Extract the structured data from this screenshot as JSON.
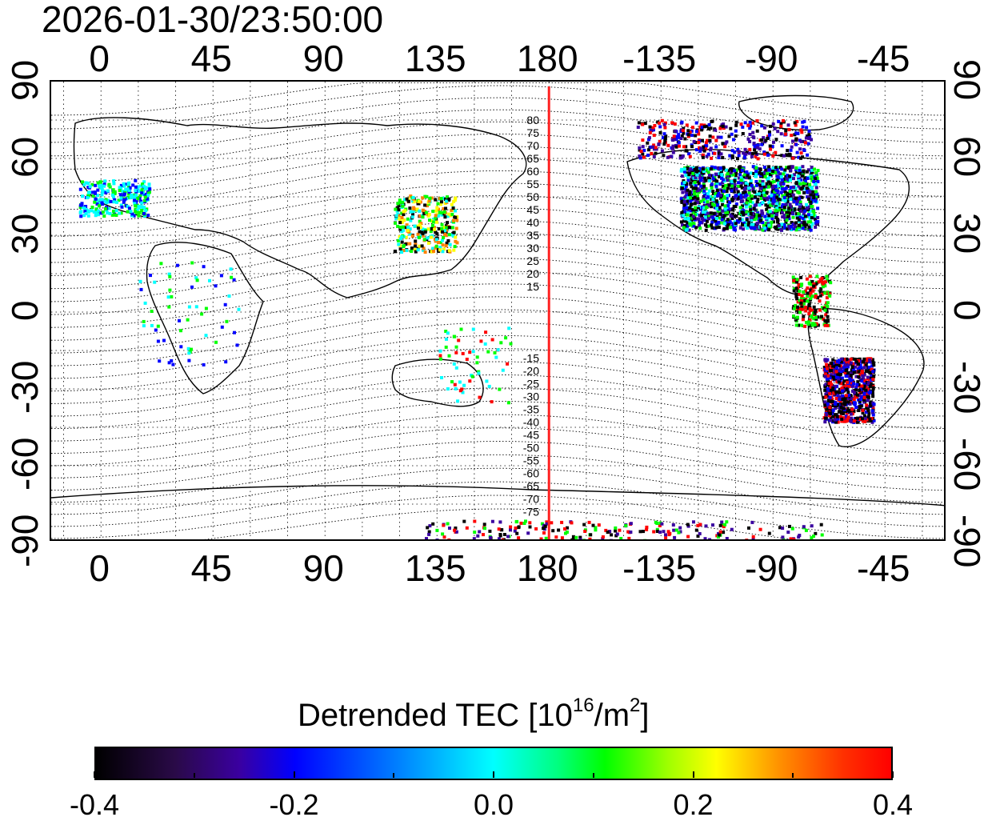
{
  "header": {
    "timestamp": "2026-01-30/23:50:00"
  },
  "axes": {
    "x_top_labels": [
      "0",
      "45",
      "90",
      "135",
      "180",
      "-135",
      "-90",
      "-45"
    ],
    "x_bottom_labels": [
      "0",
      "45",
      "90",
      "135",
      "180",
      "-135",
      "-90",
      "-45"
    ],
    "y_left_labels": [
      "90",
      "60",
      "30",
      "0",
      "-30",
      "-60",
      "-90"
    ],
    "y_right_labels": [
      "90",
      "60",
      "30",
      "0",
      "-30",
      "-60",
      "-90"
    ],
    "lon_range": [
      -20,
      340
    ],
    "lat_range": [
      -90,
      90
    ]
  },
  "map": {
    "terminator_longitude": 180,
    "terminator_color": "#ff2020",
    "contour_labels_north": [
      "80",
      "75",
      "70",
      "65",
      "60",
      "55",
      "50",
      "45",
      "40",
      "35",
      "30",
      "25",
      "20",
      "15"
    ],
    "contour_labels_south": [
      "-15",
      "-20",
      "-25",
      "-30",
      "-35",
      "-40",
      "-45",
      "-50",
      "-55",
      "-60",
      "-65",
      "-70",
      "-75"
    ]
  },
  "colorbar": {
    "title_main": "Detrended TEC  [10",
    "title_sup1": "16",
    "title_mid": "/m",
    "title_sup2": "2",
    "title_end": "]",
    "ticks": [
      "-0.4",
      "-0.2",
      "0.0",
      "0.2",
      "0.4"
    ],
    "min": -0.4,
    "max": 0.4,
    "colors": [
      "#000000",
      "#3a00a0",
      "#0000ff",
      "#00ffff",
      "#00ff00",
      "#ffff00",
      "#ff8000",
      "#ff0000"
    ]
  }
}
